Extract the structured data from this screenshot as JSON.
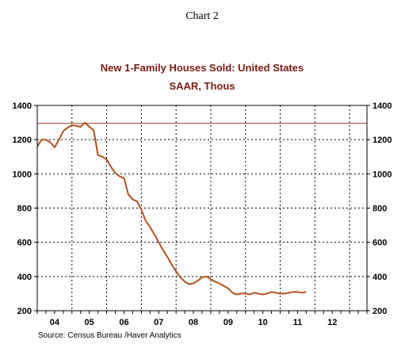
{
  "caption": "Chart 2",
  "source": "Source:  Census Bureau /Haver Analytics",
  "colors": {
    "series": "#b5501f",
    "reference": "#a0401a",
    "title": "#7a1a12"
  },
  "chart_data": {
    "type": "line",
    "title": "New 1-Family Houses Sold: United States",
    "subtitle": "SAAR, Thous",
    "xlabel": "",
    "ylabel": "",
    "xlim": [
      2003.5,
      2013.0
    ],
    "ylim": [
      200,
      1400
    ],
    "yticks": [
      200,
      400,
      600,
      800,
      1000,
      1200,
      1400
    ],
    "ytick_labels": [
      "200",
      "400",
      "600",
      "800",
      "1000",
      "1200",
      "1400"
    ],
    "xtick_labels": [
      {
        "label": "04",
        "x": 2004.0
      },
      {
        "label": "05",
        "x": 2005.0
      },
      {
        "label": "06",
        "x": 2006.0
      },
      {
        "label": "07",
        "x": 2007.0
      },
      {
        "label": "08",
        "x": 2008.0
      },
      {
        "label": "09",
        "x": 2009.0
      },
      {
        "label": "10",
        "x": 2010.0
      },
      {
        "label": "11",
        "x": 2011.0
      },
      {
        "label": "12",
        "x": 2012.0
      }
    ],
    "year_boundaries": [
      2004.5,
      2005.5,
      2006.5,
      2007.5,
      2008.5,
      2009.5,
      2010.5,
      2011.5,
      2012.5
    ],
    "grid": true,
    "reference_line": {
      "y": 1295
    },
    "series": [
      {
        "x": [
          2003.5,
          2003.625,
          2003.75,
          2003.875,
          2004.0,
          2004.125,
          2004.25,
          2004.375,
          2004.5,
          2004.625,
          2004.75,
          2004.875,
          2005.0,
          2005.125,
          2005.25,
          2005.375,
          2005.5,
          2005.625,
          2005.75,
          2005.875,
          2006.0,
          2006.125,
          2006.25,
          2006.375,
          2006.5,
          2006.625,
          2006.75,
          2006.875,
          2007.0,
          2007.125,
          2007.25,
          2007.375,
          2007.5,
          2007.625,
          2007.75,
          2007.875,
          2008.0,
          2008.125,
          2008.25,
          2008.375,
          2008.5,
          2008.625,
          2008.75,
          2008.875,
          2009.0,
          2009.125,
          2009.25,
          2009.375,
          2009.5,
          2009.625,
          2009.75,
          2009.875,
          2010.0,
          2010.125,
          2010.25,
          2010.375,
          2010.5,
          2010.625,
          2010.75,
          2010.875,
          2011.0,
          2011.125,
          2011.25
        ],
        "values": [
          1160,
          1200,
          1200,
          1185,
          1155,
          1200,
          1250,
          1270,
          1285,
          1280,
          1275,
          1300,
          1275,
          1255,
          1110,
          1100,
          1085,
          1040,
          1005,
          985,
          975,
          880,
          850,
          840,
          790,
          725,
          690,
          645,
          600,
          555,
          515,
          470,
          430,
          395,
          370,
          355,
          360,
          375,
          395,
          400,
          385,
          370,
          360,
          345,
          330,
          305,
          295,
          300,
          300,
          295,
          305,
          300,
          295,
          300,
          310,
          305,
          300,
          300,
          305,
          310,
          310,
          305,
          310
        ]
      }
    ]
  }
}
